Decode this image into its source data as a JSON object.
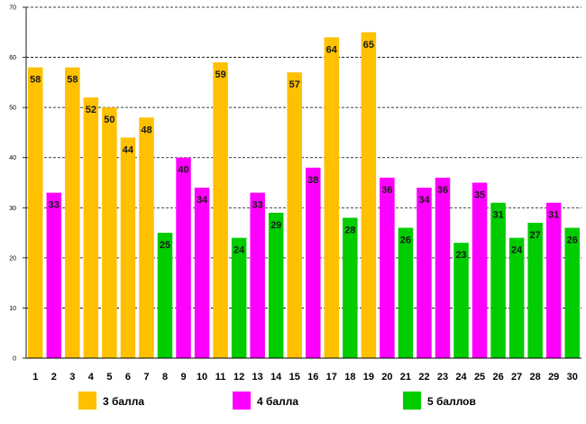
{
  "chart_data": {
    "type": "bar",
    "title": "",
    "xlabel": "",
    "ylabel": "",
    "ylim": [
      0,
      70
    ],
    "yticks": [
      0,
      10,
      20,
      30,
      40,
      50,
      60,
      70
    ],
    "grid": "horizontal dashed",
    "categories": [
      "1",
      "2",
      "3",
      "4",
      "5",
      "6",
      "7",
      "8",
      "9",
      "10",
      "11",
      "12",
      "13",
      "14",
      "15",
      "16",
      "17",
      "18",
      "19",
      "20",
      "21",
      "22",
      "23",
      "24",
      "25",
      "26",
      "27",
      "28",
      "29",
      "30"
    ],
    "values": [
      58,
      33,
      58,
      52,
      50,
      44,
      48,
      25,
      40,
      34,
      59,
      24,
      33,
      29,
      57,
      38,
      64,
      28,
      65,
      36,
      26,
      34,
      36,
      23,
      35,
      31,
      24,
      27,
      31,
      26
    ],
    "groups": [
      "3",
      "4",
      "3",
      "3",
      "3",
      "3",
      "3",
      "5",
      "4",
      "4",
      "3",
      "5",
      "4",
      "5",
      "3",
      "4",
      "3",
      "5",
      "3",
      "4",
      "5",
      "4",
      "4",
      "5",
      "4",
      "5",
      "5",
      "5",
      "4",
      "5"
    ],
    "legend_position": "bottom",
    "legend": [
      {
        "key": "3",
        "label": "3 балла",
        "color": "#FFC000"
      },
      {
        "key": "4",
        "label": "4 балла",
        "color": "#FF00FF"
      },
      {
        "key": "5",
        "label": "5 баллов",
        "color": "#00CC00"
      }
    ]
  }
}
